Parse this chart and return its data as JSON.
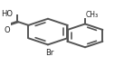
{
  "figsize": [
    1.37,
    0.73
  ],
  "dpi": 100,
  "lc": "#555555",
  "lw": 1.4,
  "r1x": 0.33,
  "r1y": 0.52,
  "r1": 0.2,
  "r2x": 0.66,
  "r2y": 0.46,
  "r2": 0.18,
  "ao1": 90,
  "ao2": 90,
  "db1": [
    0,
    2,
    4
  ],
  "db2": [
    1,
    3,
    5
  ],
  "conn1_vtx": 5,
  "conn2_vtx": 2,
  "cooh_vtx": 3,
  "br_vtx": 4,
  "ch3_vtx": 0
}
